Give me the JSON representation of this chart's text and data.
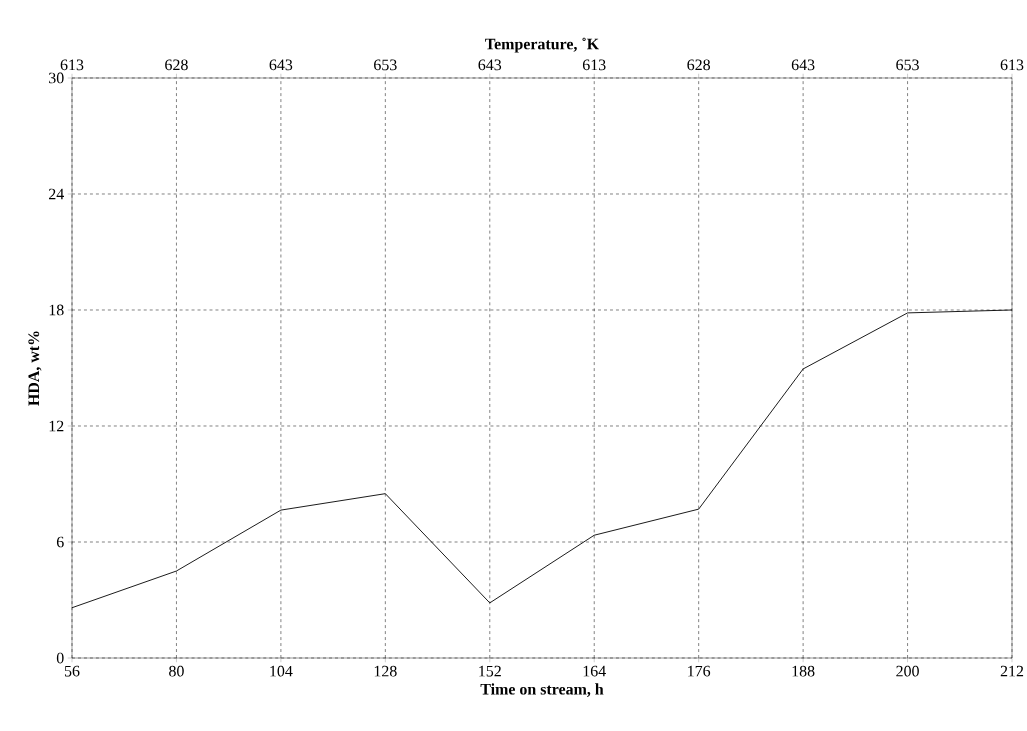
{
  "chart_data": {
    "type": "line",
    "xlabel": "Time on stream, h",
    "ylabel": "HDA, wt%",
    "x2label": "Temperature, ˚K",
    "categories": [
      "56",
      "80",
      "104",
      "128",
      "152",
      "164",
      "176",
      "188",
      "200",
      "212"
    ],
    "values": [
      2.6,
      4.5,
      7.65,
      8.5,
      2.85,
      6.35,
      7.7,
      14.95,
      17.85,
      18.0
    ],
    "color": "#000000",
    "annotations": [
      "613",
      "628",
      "643",
      "653",
      "643",
      "613",
      "628",
      "643",
      "653",
      "613"
    ],
    "ylim": [
      0,
      30
    ],
    "yticks": [
      0,
      6,
      12,
      18,
      24,
      30
    ],
    "grid": true,
    "marker": "none",
    "line_style": "solid"
  }
}
